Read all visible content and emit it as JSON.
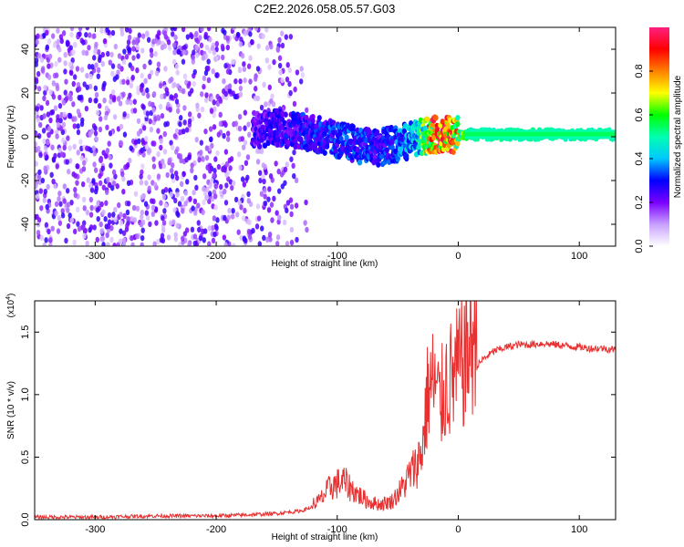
{
  "title": "C2E2.2026.058.05.57.G03",
  "chart_data": [
    {
      "type": "heatmap",
      "name": "spectrogram",
      "xlabel": "Height of straight line (km)",
      "ylabel": "Frequency (Hz)",
      "xlim": [
        -350,
        130
      ],
      "ylim": [
        -50,
        50
      ],
      "xticks": [
        -300,
        -200,
        -100,
        0,
        100
      ],
      "xtick_labels": [
        "-300",
        "-200",
        "-100",
        "0",
        "100"
      ],
      "yticks": [
        -40,
        -20,
        0,
        20,
        40
      ],
      "ytick_labels": [
        "-40",
        "-20",
        "0",
        "20",
        "40"
      ],
      "colorbar": {
        "label": "Normalized spectral amplitude",
        "range": [
          0,
          1
        ],
        "ticks": [
          0.0,
          0.2,
          0.4,
          0.6,
          0.8
        ],
        "tick_labels": [
          "0.0",
          "0.2",
          "0.4",
          "0.6",
          "0.8"
        ],
        "colors": [
          "#ffffff",
          "#c8a0ff",
          "#7a00ff",
          "#0000ff",
          "#00c8ff",
          "#00ffb0",
          "#00ff00",
          "#ffff00",
          "#ff8000",
          "#ff0000",
          "#ff2080"
        ]
      },
      "signal_track": [
        {
          "x": -170,
          "f": 3,
          "amp": 0.25
        },
        {
          "x": -150,
          "f": 4,
          "amp": 0.28
        },
        {
          "x": -130,
          "f": 3,
          "amp": 0.3
        },
        {
          "x": -110,
          "f": 0,
          "amp": 0.32
        },
        {
          "x": -95,
          "f": -2,
          "amp": 0.35
        },
        {
          "x": -80,
          "f": -4,
          "amp": 0.35
        },
        {
          "x": -65,
          "f": -5,
          "amp": 0.3
        },
        {
          "x": -50,
          "f": -3,
          "amp": 0.35
        },
        {
          "x": -35,
          "f": -1,
          "amp": 0.45
        },
        {
          "x": -20,
          "f": 1,
          "amp": 0.9
        },
        {
          "x": -5,
          "f": 1,
          "amp": 0.85
        },
        {
          "x": 10,
          "f": 1,
          "amp": 0.5
        },
        {
          "x": 40,
          "f": 1,
          "amp": 0.5
        },
        {
          "x": 80,
          "f": 1,
          "amp": 0.5
        },
        {
          "x": 130,
          "f": 1,
          "amp": 0.5
        }
      ]
    },
    {
      "type": "line",
      "name": "snr",
      "xlabel": "Height of straight line (km)",
      "ylabel": "SNR (10 * v/v)",
      "yscale_label": "(x10",
      "yscale_exp": "4",
      "yscale_suffix": ")",
      "xlim": [
        -350,
        130
      ],
      "ylim": [
        0,
        1.75
      ],
      "xticks": [
        -300,
        -200,
        -100,
        0,
        100
      ],
      "xtick_labels": [
        "-300",
        "-200",
        "-100",
        "0",
        "100"
      ],
      "yticks": [
        0.0,
        0.5,
        1.0,
        1.5
      ],
      "ytick_labels": [
        "0.0",
        "0.5",
        "1.0",
        "1.5"
      ],
      "color": "#e83030",
      "series": [
        {
          "name": "SNR",
          "x": [
            -350,
            -300,
            -250,
            -200,
            -170,
            -150,
            -130,
            -115,
            -105,
            -95,
            -85,
            -75,
            -65,
            -55,
            -45,
            -40,
            -35,
            -30,
            -25,
            -20,
            -15,
            -10,
            -5,
            0,
            5,
            10,
            15,
            20,
            30,
            40,
            50,
            60,
            70,
            80,
            90,
            100,
            110,
            120,
            130
          ],
          "y": [
            0.02,
            0.02,
            0.03,
            0.03,
            0.04,
            0.05,
            0.07,
            0.12,
            0.22,
            0.25,
            0.18,
            0.12,
            0.1,
            0.12,
            0.22,
            0.3,
            0.35,
            0.45,
            0.85,
            0.9,
            0.75,
            0.9,
            0.92,
            0.98,
            1.05,
            1.15,
            1.22,
            1.28,
            1.35,
            1.38,
            1.4,
            1.4,
            1.41,
            1.4,
            1.39,
            1.38,
            1.37,
            1.37,
            1.36
          ]
        }
      ]
    }
  ]
}
